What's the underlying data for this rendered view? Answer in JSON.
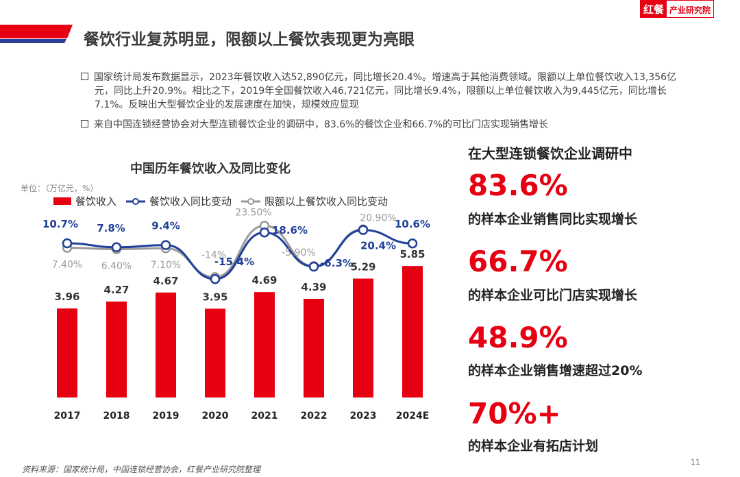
{
  "logo": {
    "text_a": "红餐",
    "text_b": "产业研究院"
  },
  "title": "餐饮行业复苏明显，限额以上餐饮表现更为亮眼",
  "bullets": [
    "国家统计局发布数据显示，2023年餐饮收入达52,890亿元，同比增长20.4%。增速高于其他消费领域。限额以上单位餐饮收入13,356亿元，同比上升20.9%。相比之下，2019年全国餐饮收入46,721亿元，同比增长9.4%，限额以上单位餐饮收入为9,445亿元，同比增长7.1%。反映出大型餐饮企业的发展速度在加快，规模效应显现",
    "来自中国连锁经营协会对大型连锁餐饮企业的调研中，83.6%的餐饮企业和66.7%的可比门店实现销售增长"
  ],
  "chart_data": {
    "type": "bar+line",
    "title": "中国历年餐饮收入及同比变化",
    "unit": "单位：（万亿元，%）",
    "categories": [
      "2017",
      "2018",
      "2019",
      "2020",
      "2021",
      "2022",
      "2023",
      "2024E"
    ],
    "series": [
      {
        "name": "餐饮收入",
        "type": "bar",
        "color": "#e60012",
        "values": [
          3.96,
          4.27,
          4.67,
          3.95,
          4.69,
          4.39,
          5.29,
          5.85
        ],
        "labels": [
          "3.96",
          "4.27",
          "4.67",
          "3.95",
          "4.69",
          "4.39",
          "5.29",
          "5.85"
        ]
      },
      {
        "name": "餐饮收入同比变动",
        "type": "line",
        "color": "#1f3f98",
        "values": [
          10.7,
          7.8,
          9.4,
          -15.4,
          18.6,
          -6.3,
          20.4,
          10.6
        ],
        "labels": [
          "10.7%",
          "7.8%",
          "9.4%",
          "-15.4%",
          "18.6%",
          "-6.3%",
          "20.4%",
          "10.6%"
        ]
      },
      {
        "name": "限额以上餐饮收入同比变动",
        "type": "line",
        "color": "#999999",
        "values": [
          7.4,
          6.4,
          7.1,
          -14,
          23.5,
          -5.9,
          20.9,
          null
        ],
        "labels": [
          "7.40%",
          "6.40%",
          "7.10%",
          "-14%",
          "23.50%",
          "-5.90%",
          "20.90%",
          ""
        ]
      }
    ]
  },
  "right": {
    "heading": "在大型连锁餐饮企业调研中",
    "stats": [
      {
        "value": "83.6%",
        "text": "的样本企业销售同比实现增长"
      },
      {
        "value": "66.7%",
        "text": "的样本企业可比门店实现增长"
      },
      {
        "value": "48.9%",
        "text": "的样本企业销售增速超过20%"
      },
      {
        "value": "70%+",
        "text": "的样本企业有拓店计划"
      }
    ]
  },
  "source": "资料来源：国家统计局，中国连锁经营协会，红餐产业研究院整理",
  "page_number": "11"
}
